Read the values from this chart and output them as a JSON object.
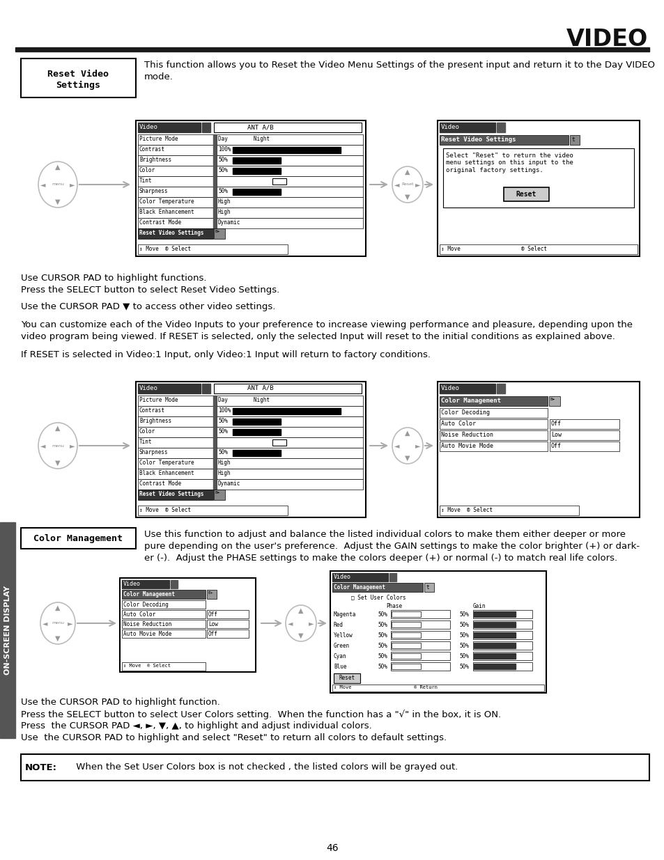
{
  "title": "VIDEO",
  "page_number": "46",
  "bg_color": "#ffffff",
  "sidebar_bg": "#555555",
  "sidebar_label": "ON-SCREEN DISPLAY",
  "section1_label_line1": "Reset Video",
  "section1_label_line2": "Settings",
  "section1_desc_line1": "This function allows you to Reset the Video Menu Settings of the present input and return it to the Day VIDEO",
  "section1_desc_line2": "mode.",
  "text1a": "Use CURSOR PAD to highlight functions.",
  "text1b": "Press the SELECT button to select Reset Video Settings.",
  "text2": "Use the CURSOR PAD ▼ to access other video settings.",
  "text3a": "You can customize each of the Video Inputs to your preference to increase viewing performance and pleasure, depending upon the",
  "text3b": "video program being viewed. If RESET is selected, only the selected Input will reset to the initial conditions as explained above.",
  "text4": "If RESET is selected in Video:1 Input, only Video:1 Input will return to factory conditions.",
  "section2_label": "Color Management",
  "section2_desc_line1": "Use this function to adjust and balance the listed individual colors to make them either deeper or more",
  "section2_desc_line2": "pure depending on the user's preference.  Adjust the GAIN settings to make the color brighter (+) or dark-",
  "section2_desc_line3": "er (-).  Adjust the PHASE settings to make the colors deeper (+) or normal (-) to match real life colors.",
  "text5a": "Use the CURSOR PAD to highlight function.",
  "text5b": "Press the SELECT button to select User Colors setting.  When the function has a \"√\" in the box, it is ON.",
  "text5c": "Press  the CURSOR PAD ◄, ►, ▼, ▲, to highlight and adjust individual colors.",
  "text5d": "Use  the CURSOR PAD to highlight and select \"Reset\" to return all colors to default settings.",
  "note_label": "NOTE:",
  "note_body": "     When the Set User Colors box is not checked , the listed colors will be grayed out.",
  "menu_items": [
    "Picture Mode",
    "Contrast",
    "Brightness",
    "Color",
    "Tint",
    "Sharpness",
    "Color Temperature",
    "Black Enhancement",
    "Contrast Mode",
    "Reset Video Settings"
  ],
  "menu_values": [
    "Day        Night",
    "100%",
    "50%",
    "50%",
    "",
    "50%",
    "High",
    "High",
    "Dynamic",
    ""
  ],
  "bar_items": {
    "Contrast": 1.0,
    "Brightness": 0.45,
    "Color": 0.45,
    "Sharpness": 0.45
  },
  "cm_items": [
    "Color Decoding",
    "Auto Color",
    "Noise Reduction",
    "Auto Movie Mode"
  ],
  "cm_values": [
    "",
    "Off",
    "Low",
    "Off"
  ],
  "color_rows": [
    "Magenta",
    "Red",
    "Yellow",
    "Green",
    "Cyan",
    "Blue"
  ]
}
